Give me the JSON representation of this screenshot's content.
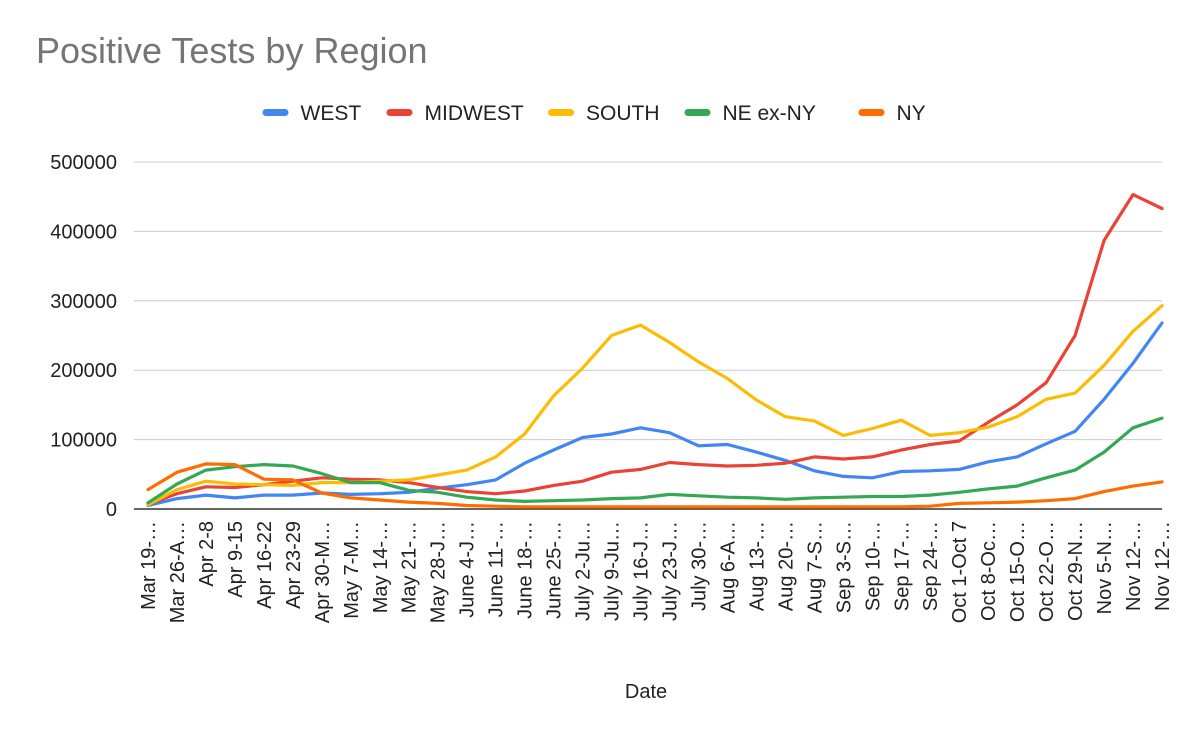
{
  "chart_data": {
    "type": "line",
    "title": "Positive Tests by Region",
    "xlabel": "Date",
    "ylabel": "",
    "ylim": [
      0,
      500000
    ],
    "yticks": [
      "0",
      "100000",
      "200000",
      "300000",
      "400000",
      "500000"
    ],
    "grid": true,
    "legend_position": "top",
    "categories": [
      "Mar 19-…",
      "Mar 26-A…",
      "Apr 2-8",
      "Apr 9-15",
      "Apr 16-22",
      "Apr 23-29",
      "Apr 30-M…",
      "May 7-M…",
      "May 14-…",
      "May 21-…",
      "May 28-J…",
      "June 4-J…",
      "June 11-…",
      "June 18-…",
      "June 25-…",
      "July 2-Ju…",
      "July 9-Ju…",
      "July 16-J…",
      "July 23-J…",
      "July 30-…",
      "Aug 6-A…",
      "Aug 13-…",
      "Aug 20-…",
      "Aug 7-S…",
      "Sep 3-S…",
      "Sep 10-…",
      "Sep 17-…",
      "Sep 24-…",
      "Oct 1-Oct 7",
      "Oct 8-Oc…",
      "Oct 15-O…",
      "Oct 22-O…",
      "Oct 29-N…",
      "Nov 5-N…",
      "Nov 12-…",
      "Nov 12-…"
    ],
    "series": [
      {
        "name": "WEST",
        "color": "#4285f4",
        "values": [
          5000,
          15000,
          20000,
          16000,
          20000,
          20000,
          23000,
          21000,
          22000,
          24000,
          30000,
          35000,
          42000,
          66000,
          85000,
          103000,
          108000,
          117000,
          110000,
          91000,
          93000,
          82000,
          70000,
          55000,
          47000,
          45000,
          54000,
          55000,
          57000,
          68000,
          75000,
          94000,
          112000,
          158000,
          210000,
          268000
        ]
      },
      {
        "name": "MIDWEST",
        "color": "#ea4335",
        "values": [
          7000,
          22000,
          32000,
          31000,
          35000,
          40000,
          45000,
          43000,
          42000,
          38000,
          31000,
          25000,
          22000,
          26000,
          34000,
          40000,
          53000,
          57000,
          67000,
          64000,
          62000,
          63000,
          66000,
          75000,
          72000,
          75000,
          85000,
          93000,
          98000,
          125000,
          150000,
          182000,
          250000,
          387000,
          453000,
          433000
        ]
      },
      {
        "name": "SOUTH",
        "color": "#fbbc04",
        "values": [
          6000,
          28000,
          40000,
          36000,
          35000,
          34000,
          38000,
          38000,
          40000,
          42000,
          49000,
          56000,
          75000,
          108000,
          163000,
          203000,
          250000,
          265000,
          240000,
          212000,
          188000,
          157000,
          133000,
          127000,
          106000,
          116000,
          128000,
          106000,
          110000,
          118000,
          133000,
          158000,
          167000,
          207000,
          256000,
          293000
        ]
      },
      {
        "name": "NE ex-NY",
        "color": "#34a853",
        "values": [
          9000,
          36000,
          56000,
          61000,
          64000,
          62000,
          51000,
          38000,
          38000,
          27000,
          24000,
          17000,
          13000,
          11000,
          12000,
          13000,
          15000,
          16000,
          21000,
          19000,
          17000,
          16000,
          14000,
          16000,
          17000,
          18000,
          18000,
          20000,
          24000,
          29000,
          33000,
          45000,
          56000,
          82000,
          117000,
          131000
        ]
      },
      {
        "name": "NY",
        "color": "#ff6d01",
        "values": [
          28000,
          53000,
          65000,
          64000,
          43000,
          42000,
          23000,
          16000,
          13000,
          10000,
          8000,
          5000,
          4000,
          3000,
          3000,
          3000,
          3000,
          3000,
          3000,
          3000,
          3000,
          3000,
          3000,
          3000,
          3000,
          3000,
          3000,
          4000,
          8000,
          9000,
          10000,
          12000,
          15000,
          25000,
          33000,
          39000
        ]
      }
    ]
  }
}
